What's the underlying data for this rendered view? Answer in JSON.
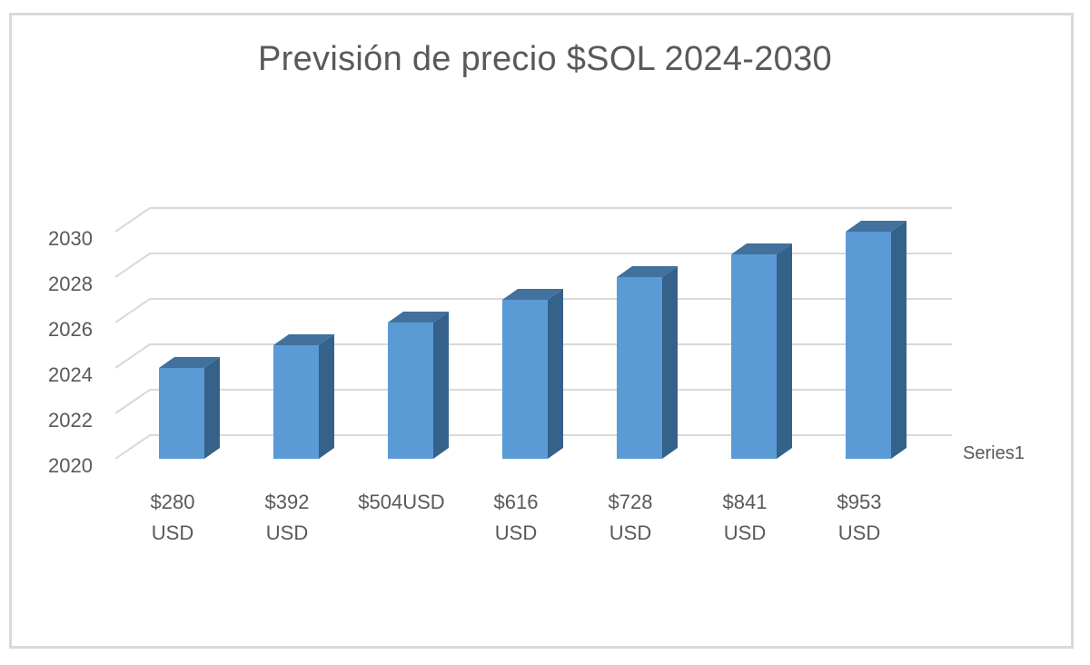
{
  "chart_data": {
    "type": "bar",
    "style": "3d-column",
    "title": "Previsión de precio $SOL 2024-2030",
    "xlabel": "",
    "ylabel": "",
    "categories": [
      "$280 USD",
      "$392 USD",
      "$504USD",
      "$616 USD",
      "$728 USD",
      "$841 USD",
      "$953 USD"
    ],
    "category_lines": [
      [
        "$280",
        "USD"
      ],
      [
        "$392",
        "USD"
      ],
      [
        "$504USD",
        ""
      ],
      [
        "$616",
        "USD"
      ],
      [
        "$728",
        "USD"
      ],
      [
        "$841",
        "USD"
      ],
      [
        "$953",
        "USD"
      ]
    ],
    "series": [
      {
        "name": "Series1",
        "values": [
          2024,
          2025,
          2026,
          2027,
          2028,
          2029,
          2030
        ],
        "color": "#5b9bd5"
      }
    ],
    "ylim": [
      2020,
      2030
    ],
    "yticks": [
      "2030",
      "2028",
      "2026",
      "2024",
      "2022",
      "2020"
    ],
    "grid": true,
    "legend": {
      "position": "right",
      "entries": [
        "Series1"
      ]
    }
  },
  "colors": {
    "bar_front": "#5b9bd5",
    "bar_top": "#41719c",
    "bar_side": "#35628a",
    "grid": "#d9d9d9",
    "text": "#595959",
    "frame": "#d9d9d9"
  }
}
